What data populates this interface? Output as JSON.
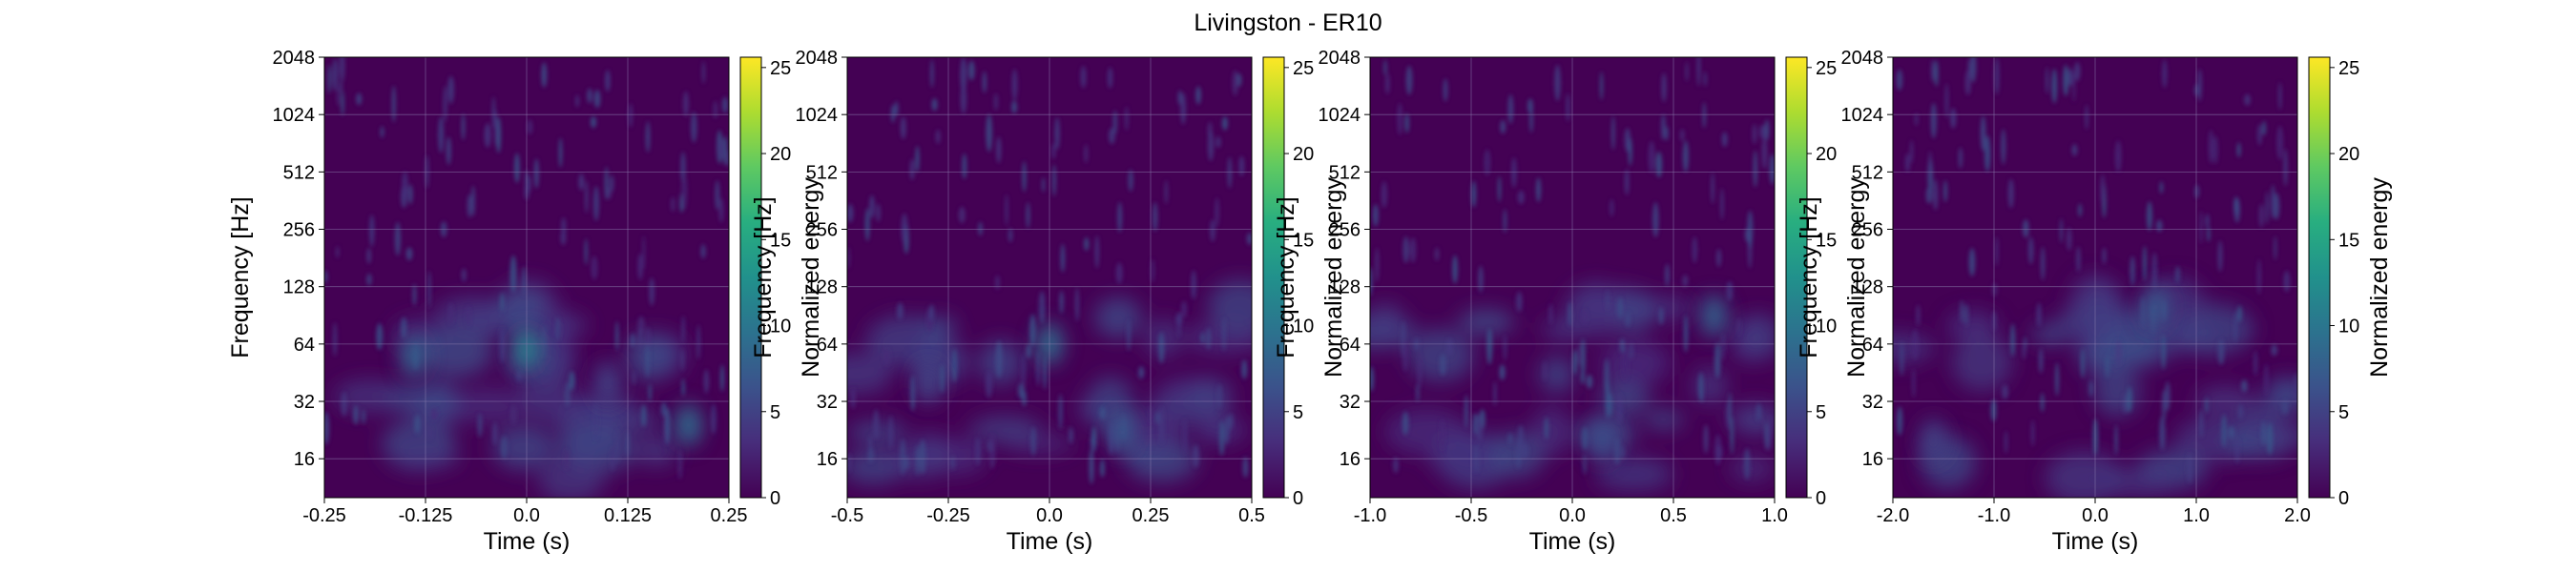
{
  "figure": {
    "suptitle": "Livingston - ER10"
  },
  "colors": {
    "colormap": "viridis",
    "background": "#440154",
    "grid": "#8e80b0"
  },
  "chart_data": [
    {
      "type": "heatmap",
      "title": "",
      "xlabel": "Time (s)",
      "ylabel": "Frequency [Hz]",
      "colorbar_label": "Normalized energy",
      "xlim": [
        -0.25,
        0.25
      ],
      "xticks": [
        -0.25,
        -0.125,
        0.0,
        0.125,
        0.25
      ],
      "xtick_labels": [
        "-0.25",
        "-0.125",
        "0.0",
        "0.125",
        "0.25"
      ],
      "y_scale": "log2",
      "ylim": [
        10,
        2048
      ],
      "yticks": [
        16,
        32,
        64,
        128,
        256,
        512,
        1024,
        2048
      ],
      "ytick_labels": [
        "16",
        "32",
        "64",
        "128",
        "256",
        "512",
        "1024",
        "2048"
      ],
      "clim": [
        0,
        25.6
      ],
      "cbar_ticks": [
        0,
        5,
        10,
        15,
        20,
        25
      ],
      "cbar_tick_labels": [
        "0",
        "5",
        "10",
        "15",
        "20",
        "25"
      ],
      "grid": true,
      "features": [
        {
          "t": -0.14,
          "f": 55,
          "energy": 8
        },
        {
          "t": 0.0,
          "f": 60,
          "energy": 11
        },
        {
          "t": 0.2,
          "f": 24,
          "energy": 9
        },
        {
          "t": 0.1,
          "f": 40,
          "energy": 5
        }
      ]
    },
    {
      "type": "heatmap",
      "title": "",
      "xlabel": "Time (s)",
      "ylabel": "Frequency [Hz]",
      "colorbar_label": "Normalized energy",
      "xlim": [
        -0.5,
        0.5
      ],
      "xticks": [
        -0.5,
        -0.25,
        0.0,
        0.25,
        0.5
      ],
      "xtick_labels": [
        "-0.5",
        "-0.25",
        "0.0",
        "0.25",
        "0.5"
      ],
      "y_scale": "log2",
      "ylim": [
        10,
        2048
      ],
      "yticks": [
        16,
        32,
        64,
        128,
        256,
        512,
        1024,
        2048
      ],
      "ytick_labels": [
        "16",
        "32",
        "64",
        "128",
        "256",
        "512",
        "1024",
        "2048"
      ],
      "clim": [
        0,
        25.6
      ],
      "cbar_ticks": [
        0,
        5,
        10,
        15,
        20,
        25
      ],
      "cbar_tick_labels": [
        "0",
        "5",
        "10",
        "15",
        "20",
        "25"
      ],
      "grid": true,
      "features": [
        {
          "t": 0.0,
          "f": 64,
          "energy": 9
        },
        {
          "t": 0.18,
          "f": 22,
          "energy": 7
        },
        {
          "t": -0.3,
          "f": 40,
          "energy": 5
        }
      ]
    },
    {
      "type": "heatmap",
      "title": "",
      "xlabel": "Time (s)",
      "ylabel": "Frequency [Hz]",
      "colorbar_label": "Normalized energy",
      "xlim": [
        -1.0,
        1.0
      ],
      "xticks": [
        -1.0,
        -0.5,
        0.0,
        0.5,
        1.0
      ],
      "xtick_labels": [
        "-1.0",
        "-0.5",
        "0.0",
        "0.5",
        "1.0"
      ],
      "y_scale": "log2",
      "ylim": [
        10,
        2048
      ],
      "yticks": [
        16,
        32,
        64,
        128,
        256,
        512,
        1024,
        2048
      ],
      "ytick_labels": [
        "16",
        "32",
        "64",
        "128",
        "256",
        "512",
        "1024",
        "2048"
      ],
      "clim": [
        0,
        25.6
      ],
      "cbar_ticks": [
        0,
        5,
        10,
        15,
        20,
        25
      ],
      "cbar_tick_labels": [
        "0",
        "5",
        "10",
        "15",
        "20",
        "25"
      ],
      "grid": true,
      "features": [
        {
          "t": 0.7,
          "f": 90,
          "energy": 8
        },
        {
          "t": 0.15,
          "f": 20,
          "energy": 6
        }
      ]
    },
    {
      "type": "heatmap",
      "title": "",
      "xlabel": "Time (s)",
      "ylabel": "Frequency [Hz]",
      "colorbar_label": "Normalized energy",
      "xlim": [
        -2.0,
        2.0
      ],
      "xticks": [
        -2.0,
        -1.0,
        0.0,
        1.0,
        2.0
      ],
      "xtick_labels": [
        "-2.0",
        "-1.0",
        "0.0",
        "1.0",
        "2.0"
      ],
      "y_scale": "log2",
      "ylim": [
        10,
        2048
      ],
      "yticks": [
        16,
        32,
        64,
        128,
        256,
        512,
        1024,
        2048
      ],
      "ytick_labels": [
        "16",
        "32",
        "64",
        "128",
        "256",
        "512",
        "1024",
        "2048"
      ],
      "clim": [
        0,
        25.6
      ],
      "cbar_ticks": [
        0,
        5,
        10,
        15,
        20,
        25
      ],
      "cbar_tick_labels": [
        "0",
        "5",
        "10",
        "15",
        "20",
        "25"
      ],
      "grid": true,
      "features": [
        {
          "t": 0.6,
          "f": 100,
          "energy": 7
        },
        {
          "t": -1.6,
          "f": 20,
          "energy": 5
        }
      ]
    }
  ]
}
